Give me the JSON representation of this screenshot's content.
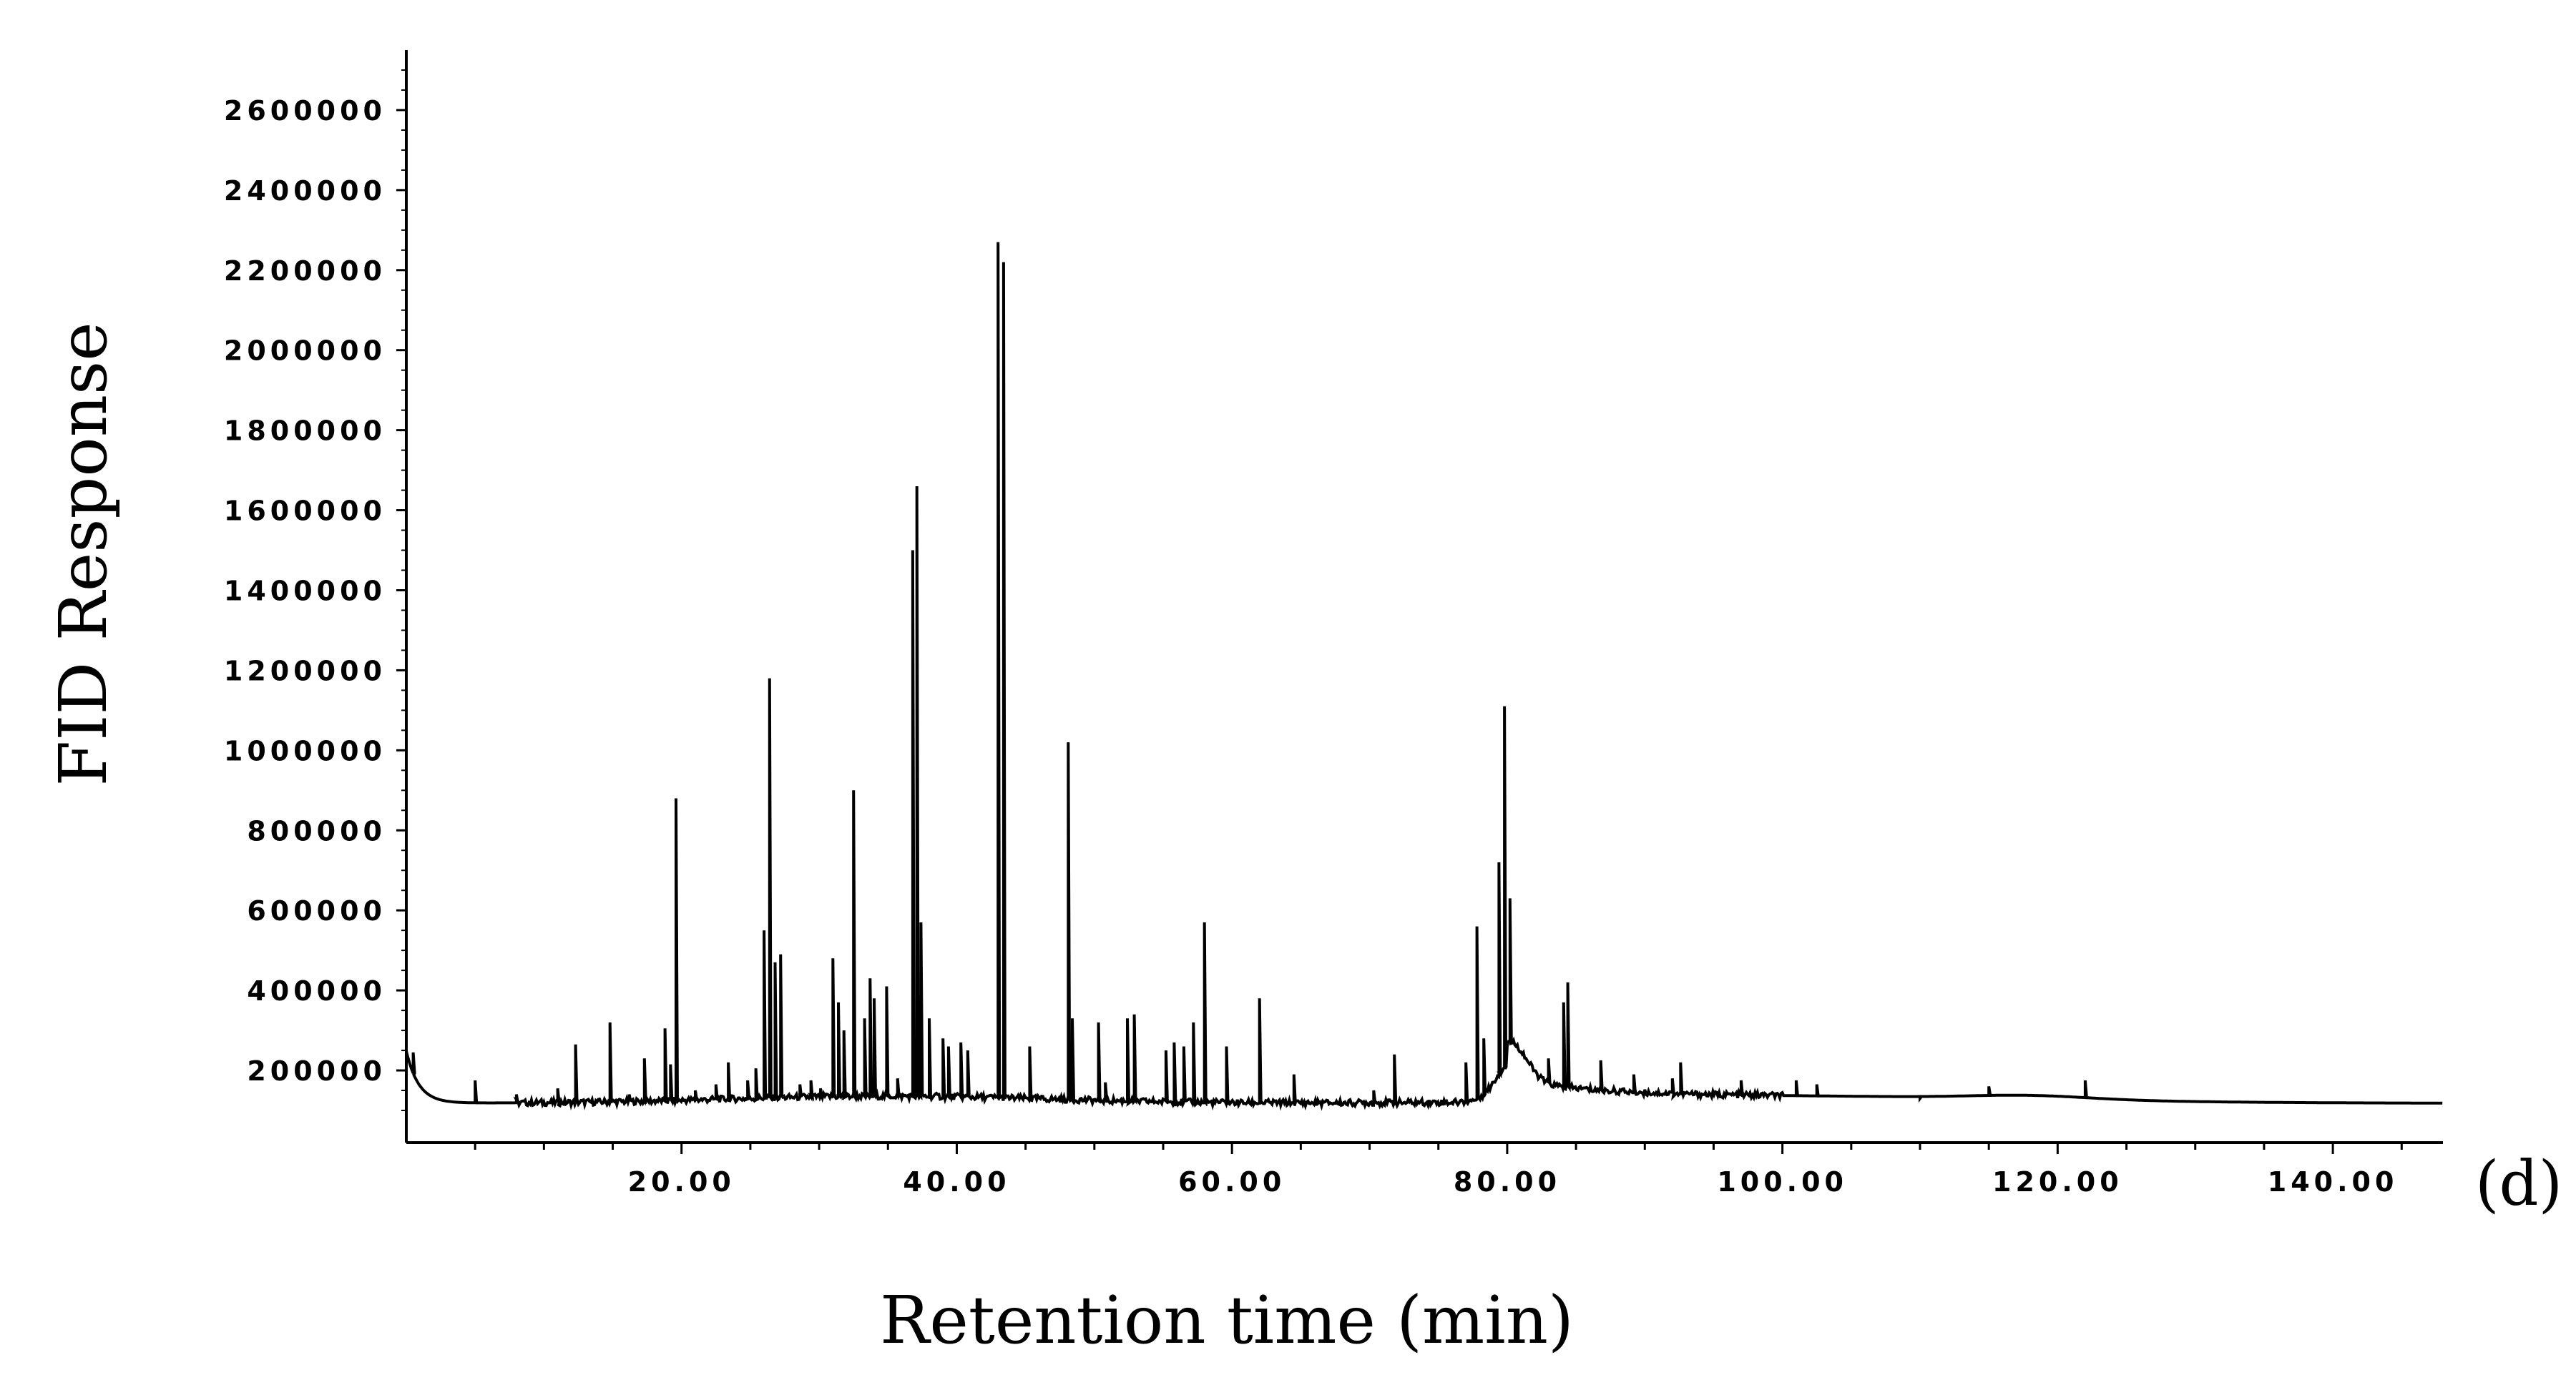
{
  "panel_label": "(d)",
  "chart_data": {
    "type": "line",
    "title": "",
    "xlabel": "Retention time (min)",
    "ylabel": "FID Response",
    "xlim": [
      0,
      148
    ],
    "ylim": [
      100000,
      2750000
    ],
    "x_ticks": [
      20,
      40,
      60,
      80,
      100,
      120,
      140
    ],
    "x_tick_labels": [
      "20.00",
      "40.00",
      "60.00",
      "80.00",
      "100.00",
      "120.00",
      "140.00"
    ],
    "y_ticks": [
      200000,
      400000,
      600000,
      800000,
      1000000,
      1200000,
      1400000,
      1600000,
      1800000,
      2000000,
      2200000,
      2400000,
      2600000
    ],
    "y_tick_labels": [
      "200000",
      "400000",
      "600000",
      "800000",
      "1000000",
      "1200000",
      "1400000",
      "1600000",
      "1800000",
      "2000000",
      "2200000",
      "2400000",
      "2600000"
    ],
    "grid": false,
    "legend": "none",
    "line_color": "#000000",
    "series": [
      {
        "peaks": [
          {
            "x": 0.5,
            "y": 245000
          },
          {
            "x": 5.0,
            "y": 175000
          },
          {
            "x": 8.0,
            "y": 140000
          },
          {
            "x": 11.0,
            "y": 155000
          },
          {
            "x": 12.3,
            "y": 265000
          },
          {
            "x": 14.8,
            "y": 320000
          },
          {
            "x": 16.2,
            "y": 140000
          },
          {
            "x": 17.3,
            "y": 230000
          },
          {
            "x": 18.8,
            "y": 305000
          },
          {
            "x": 19.2,
            "y": 215000
          },
          {
            "x": 19.6,
            "y": 880000
          },
          {
            "x": 21.0,
            "y": 150000
          },
          {
            "x": 22.5,
            "y": 165000
          },
          {
            "x": 23.4,
            "y": 220000
          },
          {
            "x": 24.8,
            "y": 175000
          },
          {
            "x": 25.4,
            "y": 205000
          },
          {
            "x": 26.0,
            "y": 550000
          },
          {
            "x": 26.4,
            "y": 1180000
          },
          {
            "x": 26.8,
            "y": 470000
          },
          {
            "x": 27.2,
            "y": 490000
          },
          {
            "x": 28.6,
            "y": 165000
          },
          {
            "x": 29.4,
            "y": 175000
          },
          {
            "x": 30.1,
            "y": 155000
          },
          {
            "x": 31.0,
            "y": 480000
          },
          {
            "x": 31.4,
            "y": 370000
          },
          {
            "x": 31.8,
            "y": 300000
          },
          {
            "x": 32.5,
            "y": 900000
          },
          {
            "x": 33.3,
            "y": 330000
          },
          {
            "x": 33.7,
            "y": 430000
          },
          {
            "x": 34.0,
            "y": 380000
          },
          {
            "x": 34.9,
            "y": 410000
          },
          {
            "x": 35.7,
            "y": 180000
          },
          {
            "x": 36.8,
            "y": 1500000
          },
          {
            "x": 37.1,
            "y": 1660000
          },
          {
            "x": 37.4,
            "y": 570000
          },
          {
            "x": 38.0,
            "y": 330000
          },
          {
            "x": 39.0,
            "y": 280000
          },
          {
            "x": 39.4,
            "y": 260000
          },
          {
            "x": 40.3,
            "y": 270000
          },
          {
            "x": 40.8,
            "y": 250000
          },
          {
            "x": 43.0,
            "y": 2270000
          },
          {
            "x": 43.4,
            "y": 2220000
          },
          {
            "x": 45.3,
            "y": 260000
          },
          {
            "x": 48.1,
            "y": 1020000
          },
          {
            "x": 48.4,
            "y": 330000
          },
          {
            "x": 50.3,
            "y": 320000
          },
          {
            "x": 50.8,
            "y": 170000
          },
          {
            "x": 52.4,
            "y": 330000
          },
          {
            "x": 52.9,
            "y": 340000
          },
          {
            "x": 55.2,
            "y": 250000
          },
          {
            "x": 55.8,
            "y": 270000
          },
          {
            "x": 56.5,
            "y": 260000
          },
          {
            "x": 57.2,
            "y": 320000
          },
          {
            "x": 58.0,
            "y": 570000
          },
          {
            "x": 59.6,
            "y": 260000
          },
          {
            "x": 62.0,
            "y": 380000
          },
          {
            "x": 64.5,
            "y": 190000
          },
          {
            "x": 70.3,
            "y": 150000
          },
          {
            "x": 71.8,
            "y": 240000
          },
          {
            "x": 77.0,
            "y": 220000
          },
          {
            "x": 77.8,
            "y": 560000
          },
          {
            "x": 78.3,
            "y": 280000
          },
          {
            "x": 79.4,
            "y": 720000
          },
          {
            "x": 79.8,
            "y": 1110000
          },
          {
            "x": 80.2,
            "y": 630000
          },
          {
            "x": 83.0,
            "y": 230000
          },
          {
            "x": 84.1,
            "y": 370000
          },
          {
            "x": 84.4,
            "y": 420000
          },
          {
            "x": 86.8,
            "y": 225000
          },
          {
            "x": 89.2,
            "y": 190000
          },
          {
            "x": 92.0,
            "y": 180000
          },
          {
            "x": 92.6,
            "y": 220000
          },
          {
            "x": 97.0,
            "y": 175000
          },
          {
            "x": 101.0,
            "y": 175000
          },
          {
            "x": 102.5,
            "y": 165000
          },
          {
            "x": 110.0,
            "y": 130000
          },
          {
            "x": 115.0,
            "y": 160000
          },
          {
            "x": 122.0,
            "y": 175000
          }
        ]
      }
    ]
  }
}
